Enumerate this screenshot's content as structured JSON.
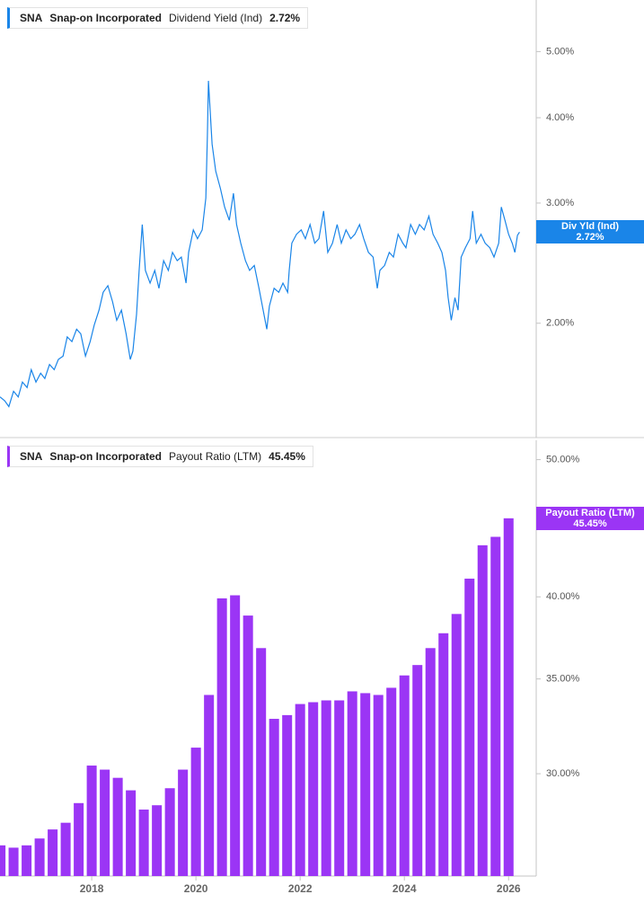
{
  "chart_data": [
    {
      "type": "line",
      "ticker": "SNA",
      "company": "Snap-on Incorporated",
      "legend_value": "2.72%",
      "tag_label": "Div Yld (Ind)",
      "log_y": true,
      "xlim": [
        2016.24,
        2026.53
      ],
      "ylim": [
        1.36,
        5.95
      ],
      "yticks": [
        {
          "value": 2,
          "label": "2.00%"
        },
        {
          "value": 3,
          "label": "3.00%"
        },
        {
          "value": 4,
          "label": "4.00%"
        },
        {
          "value": 5,
          "label": "5.00%"
        }
      ],
      "x": [
        2016.24,
        2016.33,
        2016.41,
        2016.5,
        2016.59,
        2016.67,
        2016.76,
        2016.84,
        2016.93,
        2017.02,
        2017.1,
        2017.19,
        2017.28,
        2017.36,
        2017.45,
        2017.53,
        2017.62,
        2017.71,
        2017.79,
        2017.88,
        2017.97,
        2018.05,
        2018.14,
        2018.22,
        2018.31,
        2018.4,
        2018.48,
        2018.57,
        2018.66,
        2018.74,
        2018.79,
        2018.86,
        2018.91,
        2018.97,
        2019.03,
        2019.12,
        2019.21,
        2019.29,
        2019.38,
        2019.47,
        2019.55,
        2019.64,
        2019.72,
        2019.81,
        2019.86,
        2019.95,
        2020.03,
        2020.12,
        2020.19,
        2020.22,
        2020.24,
        2020.28,
        2020.31,
        2020.38,
        2020.47,
        2020.55,
        2020.64,
        2020.72,
        2020.78,
        2020.86,
        2020.95,
        2021.03,
        2021.12,
        2021.21,
        2021.29,
        2021.36,
        2021.41,
        2021.5,
        2021.59,
        2021.67,
        2021.76,
        2021.79,
        2021.84,
        2021.93,
        2022.02,
        2022.1,
        2022.19,
        2022.28,
        2022.36,
        2022.45,
        2022.53,
        2022.62,
        2022.71,
        2022.79,
        2022.88,
        2022.97,
        2023.05,
        2023.14,
        2023.22,
        2023.31,
        2023.4,
        2023.48,
        2023.53,
        2023.62,
        2023.71,
        2023.79,
        2023.88,
        2023.97,
        2024.03,
        2024.12,
        2024.21,
        2024.29,
        2024.38,
        2024.47,
        2024.55,
        2024.64,
        2024.72,
        2024.79,
        2024.84,
        2024.9,
        2024.97,
        2025.03,
        2025.09,
        2025.17,
        2025.26,
        2025.31,
        2025.38,
        2025.47,
        2025.55,
        2025.64,
        2025.72,
        2025.81,
        2025.86,
        2025.93,
        2026.0,
        2026.07,
        2026.12,
        2026.17,
        2026.21
      ],
      "series": [
        {
          "name": "Dividend Yield (Ind)",
          "color": "#1a85e8",
          "values": [
            1.56,
            1.54,
            1.51,
            1.59,
            1.56,
            1.64,
            1.61,
            1.71,
            1.64,
            1.69,
            1.66,
            1.74,
            1.71,
            1.77,
            1.79,
            1.91,
            1.88,
            1.96,
            1.93,
            1.79,
            1.88,
            1.99,
            2.09,
            2.22,
            2.27,
            2.15,
            2.02,
            2.09,
            1.93,
            1.77,
            1.82,
            2.06,
            2.39,
            2.79,
            2.39,
            2.29,
            2.39,
            2.25,
            2.47,
            2.39,
            2.54,
            2.47,
            2.5,
            2.29,
            2.54,
            2.74,
            2.66,
            2.74,
            3.05,
            3.77,
            4.53,
            4.01,
            3.66,
            3.34,
            3.15,
            2.96,
            2.83,
            3.1,
            2.79,
            2.62,
            2.47,
            2.39,
            2.43,
            2.25,
            2.09,
            1.96,
            2.12,
            2.25,
            2.22,
            2.29,
            2.22,
            2.39,
            2.62,
            2.7,
            2.74,
            2.66,
            2.79,
            2.62,
            2.66,
            2.92,
            2.54,
            2.62,
            2.79,
            2.62,
            2.74,
            2.66,
            2.7,
            2.79,
            2.66,
            2.54,
            2.5,
            2.25,
            2.39,
            2.43,
            2.54,
            2.5,
            2.7,
            2.62,
            2.58,
            2.79,
            2.7,
            2.79,
            2.74,
            2.87,
            2.7,
            2.62,
            2.54,
            2.39,
            2.18,
            2.02,
            2.18,
            2.09,
            2.5,
            2.58,
            2.66,
            2.92,
            2.62,
            2.7,
            2.62,
            2.58,
            2.5,
            2.62,
            2.96,
            2.83,
            2.7,
            2.62,
            2.54,
            2.69,
            2.72
          ]
        }
      ]
    },
    {
      "type": "bar",
      "ticker": "SNA",
      "company": "Snap-on Incorporated",
      "legend_value": "45.45%",
      "tag_label": "Payout Ratio (LTM)",
      "log_y": true,
      "xlim": [
        2016.24,
        2026.53
      ],
      "ylim": [
        25.4,
        51.6
      ],
      "yticks": [
        {
          "value": 30,
          "label": "30.00%"
        },
        {
          "value": 35,
          "label": "35.00%"
        },
        {
          "value": 40,
          "label": "40.00%"
        },
        {
          "value": 50,
          "label": "50.00%"
        }
      ],
      "xticks": [
        2018,
        2020,
        2022,
        2024,
        2026
      ],
      "x": [
        2016.25,
        2016.5,
        2016.75,
        2017,
        2017.25,
        2017.5,
        2017.75,
        2018,
        2018.25,
        2018.5,
        2018.75,
        2019,
        2019.25,
        2019.5,
        2019.75,
        2020,
        2020.25,
        2020.5,
        2020.75,
        2021,
        2021.25,
        2021.5,
        2021.75,
        2022,
        2022.25,
        2022.5,
        2022.75,
        2023,
        2023.25,
        2023.5,
        2023.75,
        2024,
        2024.25,
        2024.5,
        2024.75,
        2025,
        2025.25,
        2025.5,
        2025.75,
        2026
      ],
      "series": [
        {
          "name": "Payout Ratio (LTM)",
          "color": "#9b35f5",
          "values": [
            26.7,
            26.6,
            26.7,
            27.0,
            27.4,
            27.7,
            28.6,
            30.4,
            30.2,
            29.8,
            29.2,
            28.3,
            28.5,
            29.3,
            30.2,
            31.3,
            34.1,
            39.9,
            40.1,
            38.8,
            36.8,
            32.8,
            33.0,
            33.6,
            33.7,
            33.8,
            33.8,
            34.3,
            34.2,
            34.1,
            34.5,
            35.2,
            35.8,
            36.8,
            37.7,
            38.9,
            41.2,
            43.5,
            44.1,
            45.45
          ]
        }
      ]
    }
  ]
}
